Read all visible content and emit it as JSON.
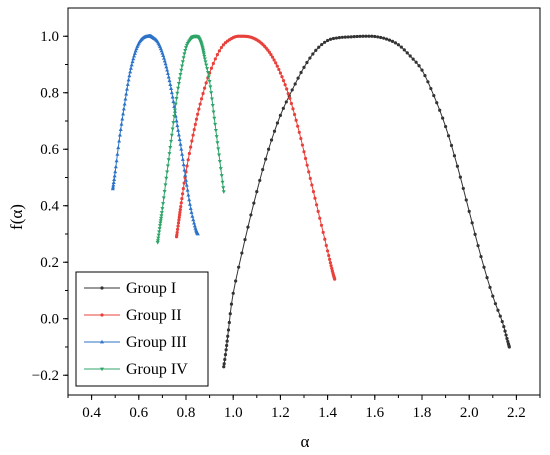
{
  "chart_data": {
    "type": "line",
    "xlabel": "α",
    "ylabel": "f(α)",
    "xlim": [
      0.3,
      2.3
    ],
    "ylim": [
      -0.27,
      1.1
    ],
    "xticks": [
      "0.4",
      "0.6",
      "0.8",
      "1.0",
      "1.2",
      "1.4",
      "1.6",
      "1.8",
      "2.0",
      "2.2"
    ],
    "xtick_values": [
      0.4,
      0.6,
      0.8,
      1.0,
      1.2,
      1.4,
      1.6,
      1.8,
      2.0,
      2.2
    ],
    "yticks": [
      "−0.2",
      "0.0",
      "0.2",
      "0.4",
      "0.6",
      "0.8",
      "1.0"
    ],
    "ytick_values": [
      -0.2,
      0.0,
      0.2,
      0.4,
      0.6,
      0.8,
      1.0
    ],
    "grid": false,
    "legend_position": "bottom-left",
    "series": [
      {
        "name": "Group I",
        "color": "#333333",
        "marker": "circle",
        "x": [
          0.96,
          0.97,
          0.98,
          1.0,
          1.05,
          1.1,
          1.15,
          1.2,
          1.25,
          1.3,
          1.35,
          1.4,
          1.45,
          1.5,
          1.55,
          1.6,
          1.65,
          1.7,
          1.75,
          1.8,
          1.85,
          1.9,
          1.95,
          2.0,
          2.05,
          2.1,
          2.14,
          2.16,
          2.17
        ],
        "y": [
          -0.17,
          -0.11,
          -0.04,
          0.09,
          0.28,
          0.45,
          0.6,
          0.72,
          0.81,
          0.89,
          0.95,
          0.985,
          0.995,
          0.998,
          1.0,
          0.999,
          0.99,
          0.97,
          0.93,
          0.88,
          0.79,
          0.68,
          0.54,
          0.38,
          0.22,
          0.08,
          -0.01,
          -0.07,
          -0.1
        ]
      },
      {
        "name": "Group II",
        "color": "#e8413b",
        "marker": "circle",
        "x": [
          0.76,
          0.77,
          0.78,
          0.8,
          0.83,
          0.86,
          0.9,
          0.95,
          1.0,
          1.04,
          1.08,
          1.12,
          1.16,
          1.2,
          1.24,
          1.28,
          1.32,
          1.36,
          1.4,
          1.42,
          1.43
        ],
        "y": [
          0.29,
          0.35,
          0.41,
          0.52,
          0.65,
          0.76,
          0.87,
          0.96,
          0.995,
          1.0,
          0.995,
          0.975,
          0.935,
          0.87,
          0.78,
          0.66,
          0.52,
          0.38,
          0.24,
          0.17,
          0.14
        ]
      },
      {
        "name": "Group III",
        "color": "#2d73c8",
        "marker": "triangle",
        "x": [
          0.49,
          0.5,
          0.52,
          0.54,
          0.56,
          0.58,
          0.6,
          0.62,
          0.64,
          0.65,
          0.66,
          0.68,
          0.7,
          0.72,
          0.74,
          0.76,
          0.78,
          0.8,
          0.82,
          0.84,
          0.85
        ],
        "y": [
          0.46,
          0.52,
          0.65,
          0.76,
          0.86,
          0.93,
          0.975,
          0.995,
          1.0,
          1.0,
          0.995,
          0.98,
          0.94,
          0.88,
          0.8,
          0.7,
          0.6,
          0.49,
          0.39,
          0.32,
          0.3
        ]
      },
      {
        "name": "Group IV",
        "color": "#2ea567",
        "marker": "triangle-down",
        "x": [
          0.68,
          0.69,
          0.7,
          0.72,
          0.74,
          0.76,
          0.78,
          0.8,
          0.82,
          0.83,
          0.84,
          0.85,
          0.86,
          0.87,
          0.88,
          0.9,
          0.92,
          0.94,
          0.96
        ],
        "y": [
          0.27,
          0.33,
          0.39,
          0.52,
          0.65,
          0.78,
          0.88,
          0.96,
          0.99,
          0.998,
          1.0,
          0.998,
          0.985,
          0.96,
          0.92,
          0.84,
          0.71,
          0.58,
          0.45
        ]
      }
    ]
  }
}
